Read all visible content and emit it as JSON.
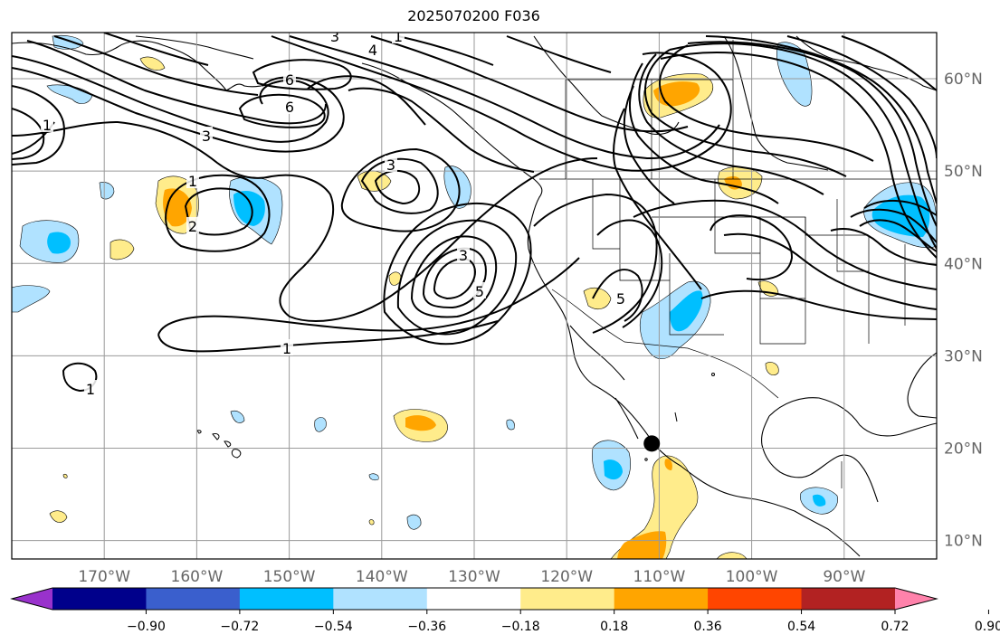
{
  "title": "2025070200 F036",
  "map": {
    "projection": "equirectangular",
    "lon_range": [
      -180,
      -80
    ],
    "lat_range": [
      8,
      65
    ],
    "lon_ticks": [
      "170°W",
      "160°W",
      "150°W",
      "140°W",
      "130°W",
      "120°W",
      "110°W",
      "100°W",
      "90°W"
    ],
    "lat_ticks": [
      "60°N",
      "50°N",
      "40°N",
      "30°N",
      "20°N",
      "10°N"
    ],
    "grid": true
  },
  "contour_labels": [
    "1",
    "2",
    "3",
    "3",
    "3",
    "3",
    "4",
    "5",
    "5",
    "6",
    "6",
    "1",
    "1",
    "1",
    "1"
  ],
  "colorbar": {
    "ticks": [
      "−0.90",
      "−0.72",
      "−0.54",
      "−0.36",
      "−0.18",
      "0.18",
      "0.36",
      "0.54",
      "0.72",
      "0.90"
    ],
    "colors": [
      "#9932cc",
      "#00008b",
      "#3a5fcd",
      "#00bfff",
      "#b0e2ff",
      "#ffffff",
      "#ffec8b",
      "#ffa500",
      "#ff4500",
      "#b22222",
      "#ff82ab"
    ],
    "extend": "both"
  },
  "marker": {
    "lon": -110.8,
    "lat": 20.5,
    "color": "#000000"
  }
}
